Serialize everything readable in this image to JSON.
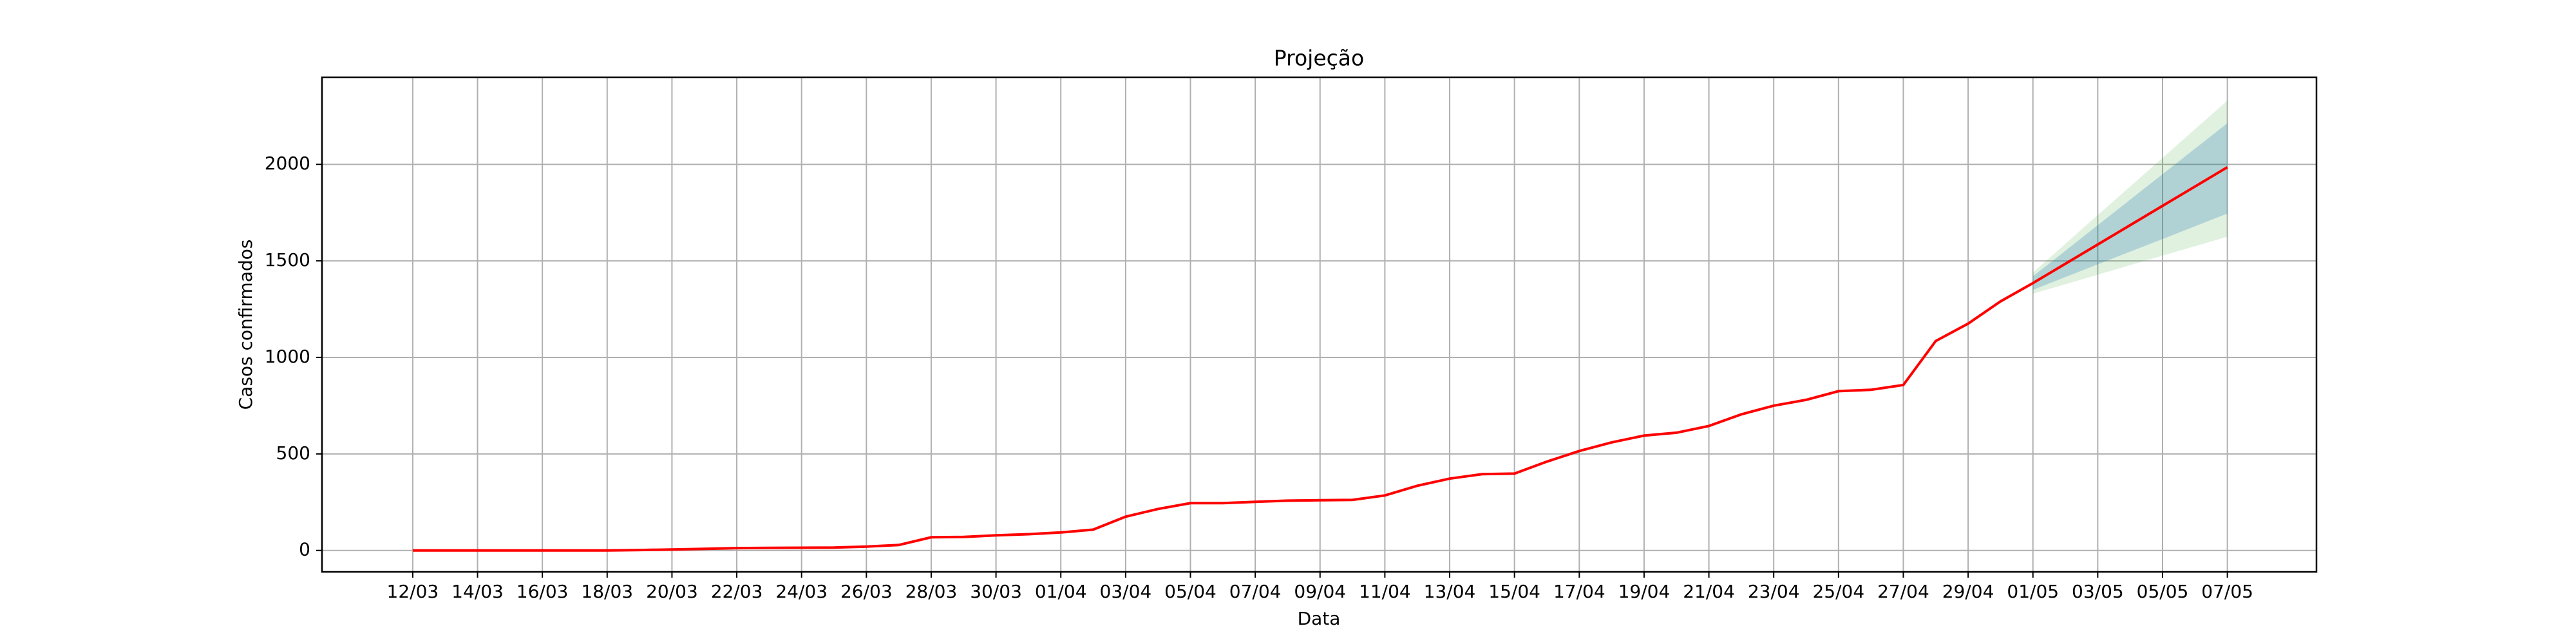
{
  "chart_data": {
    "type": "line",
    "title": "Projeção",
    "xlabel": "Data",
    "ylabel": "Casos confirmados",
    "categories": [
      "12/03",
      null,
      "14/03",
      null,
      "16/03",
      null,
      "18/03",
      null,
      "20/03",
      null,
      "22/03",
      null,
      "24/03",
      null,
      "26/03",
      null,
      "28/03",
      null,
      "30/03",
      null,
      "01/04",
      null,
      "03/04",
      null,
      "05/04",
      null,
      "07/04",
      null,
      "09/04",
      null,
      "11/04",
      null,
      "13/04",
      null,
      "15/04",
      null,
      "17/04",
      null,
      "19/04",
      null,
      "21/04",
      null,
      "23/04",
      null,
      "25/04",
      null,
      "27/04",
      null,
      "29/04",
      null,
      "01/05",
      null,
      "03/05",
      null,
      "05/05",
      null,
      "07/05"
    ],
    "series": [
      {
        "color": "#ff0000",
        "values": [
          0,
          0,
          0,
          0,
          0,
          0,
          0,
          2,
          5,
          8,
          12,
          13,
          14,
          15,
          20,
          28,
          68,
          70,
          78,
          84,
          93,
          108,
          175,
          215,
          245,
          245,
          252,
          258,
          260,
          262,
          285,
          335,
          372,
          395,
          398,
          460,
          515,
          560,
          595,
          610,
          645,
          705,
          750,
          780,
          825,
          832,
          857,
          1085,
          1175,
          1290,
          1385,
          1485,
          1585,
          1685,
          1785,
          1885,
          1985
        ]
      }
    ],
    "bands": [
      {
        "color": "#2ca02c",
        "upper": [
          null,
          null,
          null,
          null,
          null,
          null,
          null,
          null,
          null,
          null,
          null,
          null,
          null,
          null,
          null,
          null,
          null,
          null,
          null,
          null,
          null,
          null,
          null,
          null,
          null,
          null,
          null,
          null,
          null,
          null,
          null,
          null,
          null,
          null,
          null,
          null,
          null,
          null,
          null,
          null,
          null,
          null,
          null,
          null,
          null,
          null,
          null,
          null,
          null,
          null,
          1440,
          1588,
          1737,
          1885,
          2033,
          2182,
          2330
        ],
        "lower": [
          null,
          null,
          null,
          null,
          null,
          null,
          null,
          null,
          null,
          null,
          null,
          null,
          null,
          null,
          null,
          null,
          null,
          null,
          null,
          null,
          null,
          null,
          null,
          null,
          null,
          null,
          null,
          null,
          null,
          null,
          null,
          null,
          null,
          null,
          null,
          null,
          null,
          null,
          null,
          null,
          null,
          null,
          null,
          null,
          null,
          null,
          null,
          null,
          null,
          null,
          1330,
          1379,
          1428,
          1478,
          1527,
          1576,
          1625
        ]
      },
      {
        "color": "#1f77b4",
        "upper": [
          null,
          null,
          null,
          null,
          null,
          null,
          null,
          null,
          null,
          null,
          null,
          null,
          null,
          null,
          null,
          null,
          null,
          null,
          null,
          null,
          null,
          null,
          null,
          null,
          null,
          null,
          null,
          null,
          null,
          null,
          null,
          null,
          null,
          null,
          null,
          null,
          null,
          null,
          null,
          null,
          null,
          null,
          null,
          null,
          null,
          null,
          null,
          null,
          null,
          null,
          1420,
          1552,
          1685,
          1817,
          1949,
          2081,
          2213
        ],
        "lower": [
          null,
          null,
          null,
          null,
          null,
          null,
          null,
          null,
          null,
          null,
          null,
          null,
          null,
          null,
          null,
          null,
          null,
          null,
          null,
          null,
          null,
          null,
          null,
          null,
          null,
          null,
          null,
          null,
          null,
          null,
          null,
          null,
          null,
          null,
          null,
          null,
          null,
          null,
          null,
          null,
          null,
          null,
          null,
          null,
          null,
          null,
          null,
          null,
          null,
          null,
          1350,
          1416,
          1482,
          1548,
          1613,
          1679,
          1745
        ]
      }
    ],
    "xlim": [
      -2.8,
      58.75
    ],
    "ylim": [
      -111,
      2451
    ],
    "yticks": [
      0,
      500,
      1000,
      1500,
      2000
    ],
    "grid": true
  }
}
